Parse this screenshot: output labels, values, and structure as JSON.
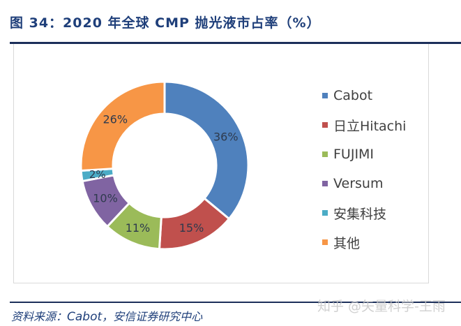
{
  "figure": {
    "title": "图 34：2020 年全球 CMP 抛光液市占率（%）",
    "source_prefix": "资料来源：",
    "source_brand": "Cabot",
    "source_suffix": "，安信证券研究中心",
    "watermark": "知乎 @矢量科学-王雨"
  },
  "chart_data": {
    "type": "pie",
    "variant": "donut",
    "title": "2020 年全球 CMP 抛光液市占率（%）",
    "categories": [
      "Cabot",
      "日立Hitachi",
      "FUJIMI",
      "Versum",
      "安集科技",
      "其他"
    ],
    "values": [
      36,
      15,
      11,
      10,
      2,
      26
    ],
    "labels": [
      "36%",
      "15%",
      "11%",
      "10%",
      "2%",
      "26%"
    ],
    "colors": [
      "#4f81bd",
      "#c0504d",
      "#9bbb59",
      "#8064a2",
      "#4bacc6",
      "#f79646"
    ],
    "start_angle_deg": 0,
    "direction": "clockwise",
    "legend_position": "right",
    "unit": "%"
  },
  "legend": [
    {
      "label": "Cabot",
      "color": "#4f81bd"
    },
    {
      "label": "日立Hitachi",
      "color": "#c0504d"
    },
    {
      "label": "FUJIMI",
      "color": "#9bbb59"
    },
    {
      "label": "Versum",
      "color": "#8064a2"
    },
    {
      "label": "安集科技",
      "color": "#4bacc6"
    },
    {
      "label": "其他",
      "color": "#f79646"
    }
  ]
}
